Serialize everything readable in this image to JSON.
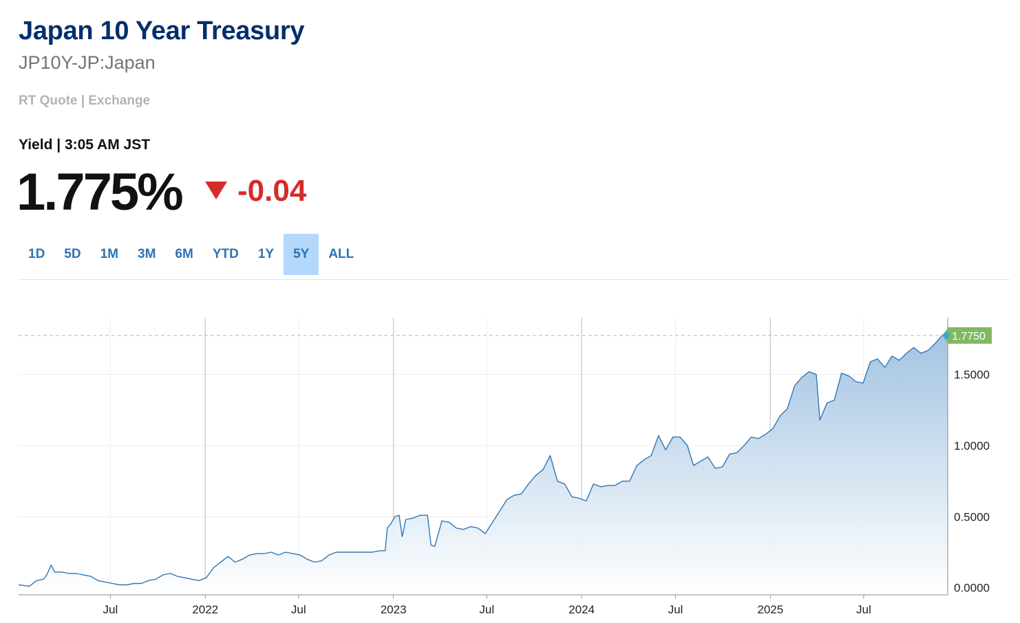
{
  "header": {
    "title": "Japan 10 Year Treasury",
    "ticker": "JP10Y-JP:Japan",
    "source": "RT Quote | Exchange"
  },
  "quote": {
    "label": "Yield | 3:05 AM JST",
    "price": "1.775%",
    "change": "-0.04",
    "direction": "down"
  },
  "ranges": {
    "items": [
      "1D",
      "5D",
      "1M",
      "3M",
      "6M",
      "YTD",
      "1Y",
      "5Y",
      "ALL"
    ],
    "selected": "5Y"
  },
  "colors": {
    "title": "#002f6c",
    "negative": "#d62b2b",
    "accent": "#2b73b5",
    "active_range": "#b3d8fc",
    "line": "#2e77b6",
    "last_label": "#7fb962"
  },
  "chart_data": {
    "type": "area",
    "ylim": [
      -0.05,
      1.9
    ],
    "xlim": [
      "2021-01-04",
      "2025-12-11"
    ],
    "y_ticks": [
      "0.0000",
      "0.5000",
      "1.0000",
      "1.5000"
    ],
    "y_tick_values": [
      0,
      0.5,
      1.0,
      1.5
    ],
    "x_ticks": [
      {
        "date": "2021-07-01",
        "label": "Jul"
      },
      {
        "date": "2022-01-01",
        "label": "2022"
      },
      {
        "date": "2022-07-01",
        "label": "Jul"
      },
      {
        "date": "2023-01-01",
        "label": "2023"
      },
      {
        "date": "2023-07-01",
        "label": "Jul"
      },
      {
        "date": "2024-01-01",
        "label": "2024"
      },
      {
        "date": "2024-07-01",
        "label": "Jul"
      },
      {
        "date": "2025-01-01",
        "label": "2025"
      },
      {
        "date": "2025-07-01",
        "label": "Jul"
      }
    ],
    "last_value": 1.775,
    "last_label": "1.7750",
    "grid": true,
    "series": [
      {
        "values": [
          [
            "2021-01-04",
            0.02
          ],
          [
            "2021-01-25",
            0.01
          ],
          [
            "2021-02-08",
            0.05
          ],
          [
            "2021-02-22",
            0.06
          ],
          [
            "2021-03-01",
            0.1
          ],
          [
            "2021-03-08",
            0.16
          ],
          [
            "2021-03-15",
            0.11
          ],
          [
            "2021-03-29",
            0.11
          ],
          [
            "2021-04-12",
            0.1
          ],
          [
            "2021-04-26",
            0.1
          ],
          [
            "2021-05-10",
            0.09
          ],
          [
            "2021-05-24",
            0.08
          ],
          [
            "2021-06-07",
            0.05
          ],
          [
            "2021-06-21",
            0.04
          ],
          [
            "2021-07-05",
            0.03
          ],
          [
            "2021-07-19",
            0.02
          ],
          [
            "2021-08-02",
            0.02
          ],
          [
            "2021-08-16",
            0.03
          ],
          [
            "2021-08-30",
            0.03
          ],
          [
            "2021-09-13",
            0.05
          ],
          [
            "2021-09-27",
            0.06
          ],
          [
            "2021-10-11",
            0.09
          ],
          [
            "2021-10-25",
            0.1
          ],
          [
            "2021-11-08",
            0.08
          ],
          [
            "2021-11-22",
            0.07
          ],
          [
            "2021-12-06",
            0.06
          ],
          [
            "2021-12-20",
            0.05
          ],
          [
            "2022-01-03",
            0.07
          ],
          [
            "2022-01-17",
            0.14
          ],
          [
            "2022-01-31",
            0.18
          ],
          [
            "2022-02-14",
            0.22
          ],
          [
            "2022-02-28",
            0.18
          ],
          [
            "2022-03-14",
            0.2
          ],
          [
            "2022-03-28",
            0.23
          ],
          [
            "2022-04-11",
            0.24
          ],
          [
            "2022-04-25",
            0.24
          ],
          [
            "2022-05-09",
            0.25
          ],
          [
            "2022-05-23",
            0.23
          ],
          [
            "2022-06-06",
            0.25
          ],
          [
            "2022-06-20",
            0.24
          ],
          [
            "2022-07-04",
            0.23
          ],
          [
            "2022-07-18",
            0.2
          ],
          [
            "2022-08-01",
            0.18
          ],
          [
            "2022-08-15",
            0.19
          ],
          [
            "2022-08-29",
            0.23
          ],
          [
            "2022-09-12",
            0.25
          ],
          [
            "2022-09-26",
            0.25
          ],
          [
            "2022-10-10",
            0.25
          ],
          [
            "2022-10-24",
            0.25
          ],
          [
            "2022-11-07",
            0.25
          ],
          [
            "2022-11-21",
            0.25
          ],
          [
            "2022-12-05",
            0.26
          ],
          [
            "2022-12-16",
            0.26
          ],
          [
            "2022-12-20",
            0.42
          ],
          [
            "2022-12-27",
            0.45
          ],
          [
            "2023-01-04",
            0.5
          ],
          [
            "2023-01-12",
            0.51
          ],
          [
            "2023-01-18",
            0.36
          ],
          [
            "2023-01-25",
            0.48
          ],
          [
            "2023-02-08",
            0.49
          ],
          [
            "2023-02-22",
            0.51
          ],
          [
            "2023-03-08",
            0.51
          ],
          [
            "2023-03-15",
            0.3
          ],
          [
            "2023-03-22",
            0.29
          ],
          [
            "2023-04-05",
            0.47
          ],
          [
            "2023-04-19",
            0.46
          ],
          [
            "2023-05-03",
            0.42
          ],
          [
            "2023-05-17",
            0.41
          ],
          [
            "2023-05-31",
            0.43
          ],
          [
            "2023-06-14",
            0.42
          ],
          [
            "2023-06-28",
            0.38
          ],
          [
            "2023-07-12",
            0.46
          ],
          [
            "2023-07-28",
            0.55
          ],
          [
            "2023-08-09",
            0.62
          ],
          [
            "2023-08-23",
            0.65
          ],
          [
            "2023-09-06",
            0.66
          ],
          [
            "2023-09-20",
            0.73
          ],
          [
            "2023-10-04",
            0.79
          ],
          [
            "2023-10-18",
            0.83
          ],
          [
            "2023-11-01",
            0.93
          ],
          [
            "2023-11-15",
            0.75
          ],
          [
            "2023-11-29",
            0.73
          ],
          [
            "2023-12-13",
            0.64
          ],
          [
            "2023-12-27",
            0.63
          ],
          [
            "2024-01-10",
            0.61
          ],
          [
            "2024-01-24",
            0.73
          ],
          [
            "2024-02-07",
            0.71
          ],
          [
            "2024-02-21",
            0.72
          ],
          [
            "2024-03-06",
            0.72
          ],
          [
            "2024-03-20",
            0.75
          ],
          [
            "2024-04-03",
            0.75
          ],
          [
            "2024-04-17",
            0.86
          ],
          [
            "2024-05-01",
            0.9
          ],
          [
            "2024-05-15",
            0.93
          ],
          [
            "2024-05-29",
            1.07
          ],
          [
            "2024-06-12",
            0.97
          ],
          [
            "2024-06-26",
            1.06
          ],
          [
            "2024-07-10",
            1.06
          ],
          [
            "2024-07-24",
            1.0
          ],
          [
            "2024-08-05",
            0.86
          ],
          [
            "2024-08-19",
            0.89
          ],
          [
            "2024-09-02",
            0.92
          ],
          [
            "2024-09-16",
            0.84
          ],
          [
            "2024-09-30",
            0.85
          ],
          [
            "2024-10-14",
            0.94
          ],
          [
            "2024-10-28",
            0.95
          ],
          [
            "2024-11-11",
            1.0
          ],
          [
            "2024-11-25",
            1.06
          ],
          [
            "2024-12-09",
            1.05
          ],
          [
            "2024-12-23",
            1.08
          ],
          [
            "2025-01-06",
            1.12
          ],
          [
            "2025-01-20",
            1.21
          ],
          [
            "2025-02-03",
            1.26
          ],
          [
            "2025-02-17",
            1.42
          ],
          [
            "2025-03-03",
            1.48
          ],
          [
            "2025-03-17",
            1.52
          ],
          [
            "2025-03-31",
            1.5
          ],
          [
            "2025-04-07",
            1.18
          ],
          [
            "2025-04-21",
            1.3
          ],
          [
            "2025-05-05",
            1.32
          ],
          [
            "2025-05-19",
            1.51
          ],
          [
            "2025-06-02",
            1.49
          ],
          [
            "2025-06-16",
            1.45
          ],
          [
            "2025-06-30",
            1.44
          ],
          [
            "2025-07-14",
            1.59
          ],
          [
            "2025-07-28",
            1.61
          ],
          [
            "2025-08-11",
            1.55
          ],
          [
            "2025-08-25",
            1.63
          ],
          [
            "2025-09-08",
            1.6
          ],
          [
            "2025-09-22",
            1.65
          ],
          [
            "2025-10-06",
            1.69
          ],
          [
            "2025-10-20",
            1.65
          ],
          [
            "2025-11-03",
            1.67
          ],
          [
            "2025-11-17",
            1.72
          ],
          [
            "2025-12-01",
            1.78
          ],
          [
            "2025-12-11",
            1.775
          ]
        ]
      }
    ]
  }
}
